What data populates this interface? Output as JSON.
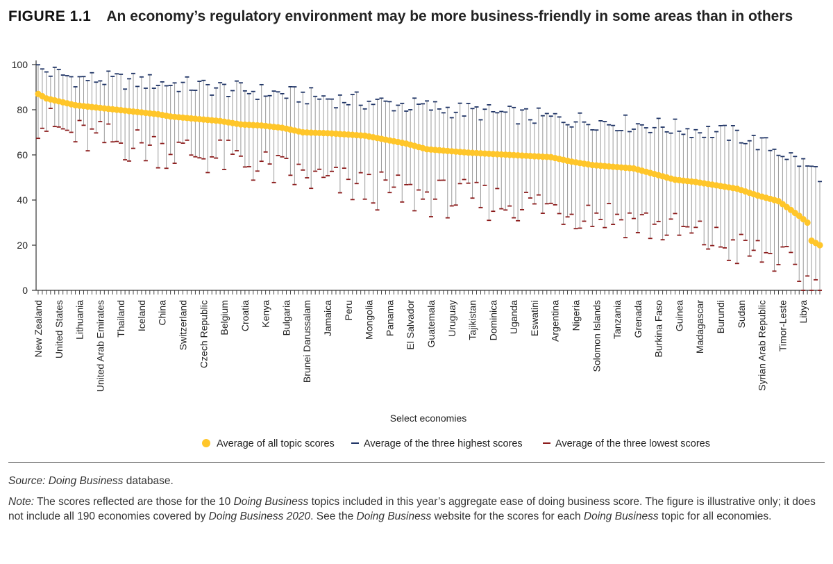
{
  "figure": {
    "number": "FIGURE 1.1",
    "title": "An economy’s regulatory environment may be more business-friendly in some areas than in others"
  },
  "source": {
    "prefix": "Source:",
    "db": "Doing Business",
    "suffix": "database."
  },
  "note": {
    "label": "Note:",
    "p1": "The scores reflected are those for the 10",
    "db1": "Doing Business",
    "p2": "topics included in this year’s aggregate ease of doing business score. The figure is illustrative only; it does not include all 190 economies covered by",
    "db2": "Doing Business 2020",
    "p3": ". See the",
    "db3": "Doing Business",
    "p4": "website for the scores for each",
    "db4": "Doing Business",
    "p5": "topic for all economies."
  },
  "colors": {
    "avg": "#FFC62A",
    "high": "#1F3466",
    "low": "#8B1A1A",
    "range": "#9a9a9a",
    "axis": "#333333"
  },
  "chart_data": {
    "type": "scatter",
    "xlabel": "Select economies",
    "ylabel": "",
    "ylim": [
      0,
      100
    ],
    "yticks": [
      0,
      20,
      40,
      60,
      80,
      100
    ],
    "n_economies": 190,
    "labeled_economies": [
      {
        "i": 1,
        "name": "New Zealand"
      },
      {
        "i": 6,
        "name": "United States"
      },
      {
        "i": 11,
        "name": "Lithuania"
      },
      {
        "i": 16,
        "name": "United Arab Emirates"
      },
      {
        "i": 21,
        "name": "Thailand"
      },
      {
        "i": 26,
        "name": "Iceland"
      },
      {
        "i": 31,
        "name": "China"
      },
      {
        "i": 36,
        "name": "Switzerland"
      },
      {
        "i": 41,
        "name": "Czech Republic"
      },
      {
        "i": 46,
        "name": "Belgium"
      },
      {
        "i": 51,
        "name": "Croatia"
      },
      {
        "i": 56,
        "name": "Kenya"
      },
      {
        "i": 61,
        "name": "Bulgaria"
      },
      {
        "i": 66,
        "name": "Brunei Darussalam"
      },
      {
        "i": 71,
        "name": "Jamaica"
      },
      {
        "i": 76,
        "name": "Peru"
      },
      {
        "i": 81,
        "name": "Mongolia"
      },
      {
        "i": 86,
        "name": "Panama"
      },
      {
        "i": 91,
        "name": "El Salvador"
      },
      {
        "i": 96,
        "name": "Guatemala"
      },
      {
        "i": 101,
        "name": "Uruguay"
      },
      {
        "i": 106,
        "name": "Tajikistan"
      },
      {
        "i": 111,
        "name": "Dominica"
      },
      {
        "i": 116,
        "name": "Uganda"
      },
      {
        "i": 121,
        "name": "Eswatini"
      },
      {
        "i": 126,
        "name": "Argentina"
      },
      {
        "i": 131,
        "name": "Nigeria"
      },
      {
        "i": 136,
        "name": "Solomon Islands"
      },
      {
        "i": 141,
        "name": "Tanzania"
      },
      {
        "i": 146,
        "name": "Grenada"
      },
      {
        "i": 151,
        "name": "Burkina Faso"
      },
      {
        "i": 156,
        "name": "Guinea"
      },
      {
        "i": 161,
        "name": "Madagascar"
      },
      {
        "i": 166,
        "name": "Burundi"
      },
      {
        "i": 171,
        "name": "Sudan"
      },
      {
        "i": 176,
        "name": "Syrian Arab Republic"
      },
      {
        "i": 181,
        "name": "Timor-Leste"
      },
      {
        "i": 186,
        "name": "Libya"
      }
    ],
    "average_anchors": [
      [
        1,
        87
      ],
      [
        3,
        85
      ],
      [
        10,
        82
      ],
      [
        20,
        80
      ],
      [
        30,
        78
      ],
      [
        33,
        77
      ],
      [
        45,
        75
      ],
      [
        50,
        73.5
      ],
      [
        55,
        73
      ],
      [
        60,
        72
      ],
      [
        65,
        70
      ],
      [
        72,
        69.5
      ],
      [
        80,
        68.5
      ],
      [
        90,
        65
      ],
      [
        95,
        62.5
      ],
      [
        105,
        61
      ],
      [
        115,
        60
      ],
      [
        125,
        59
      ],
      [
        130,
        57
      ],
      [
        135,
        55.5
      ],
      [
        145,
        54
      ],
      [
        150,
        51.5
      ],
      [
        155,
        49
      ],
      [
        160,
        48
      ],
      [
        170,
        45
      ],
      [
        175,
        42
      ],
      [
        180,
        39.5
      ],
      [
        185,
        33
      ],
      [
        187,
        30
      ],
      [
        188,
        22
      ],
      [
        190,
        20
      ]
    ],
    "high_anchors": [
      [
        1,
        98
      ],
      [
        10,
        94
      ],
      [
        30,
        92
      ],
      [
        60,
        87
      ],
      [
        90,
        82
      ],
      [
        120,
        77
      ],
      [
        150,
        73
      ],
      [
        170,
        69
      ],
      [
        180,
        62
      ],
      [
        185,
        57
      ],
      [
        190,
        52
      ]
    ],
    "low_anchors": [
      [
        1,
        75
      ],
      [
        10,
        68
      ],
      [
        30,
        63
      ],
      [
        50,
        57
      ],
      [
        60,
        52
      ],
      [
        70,
        48
      ],
      [
        90,
        42
      ],
      [
        120,
        38
      ],
      [
        140,
        33
      ],
      [
        160,
        24
      ],
      [
        170,
        18
      ],
      [
        180,
        14
      ],
      [
        185,
        6
      ],
      [
        190,
        0
      ]
    ],
    "legend": [
      {
        "key": "avg",
        "label": "Average of all topic scores"
      },
      {
        "key": "high",
        "label": "Average of the three highest scores"
      },
      {
        "key": "low",
        "label": "Average of the three lowest scores"
      }
    ],
    "legend_position": "bottom-center",
    "grid": false
  }
}
